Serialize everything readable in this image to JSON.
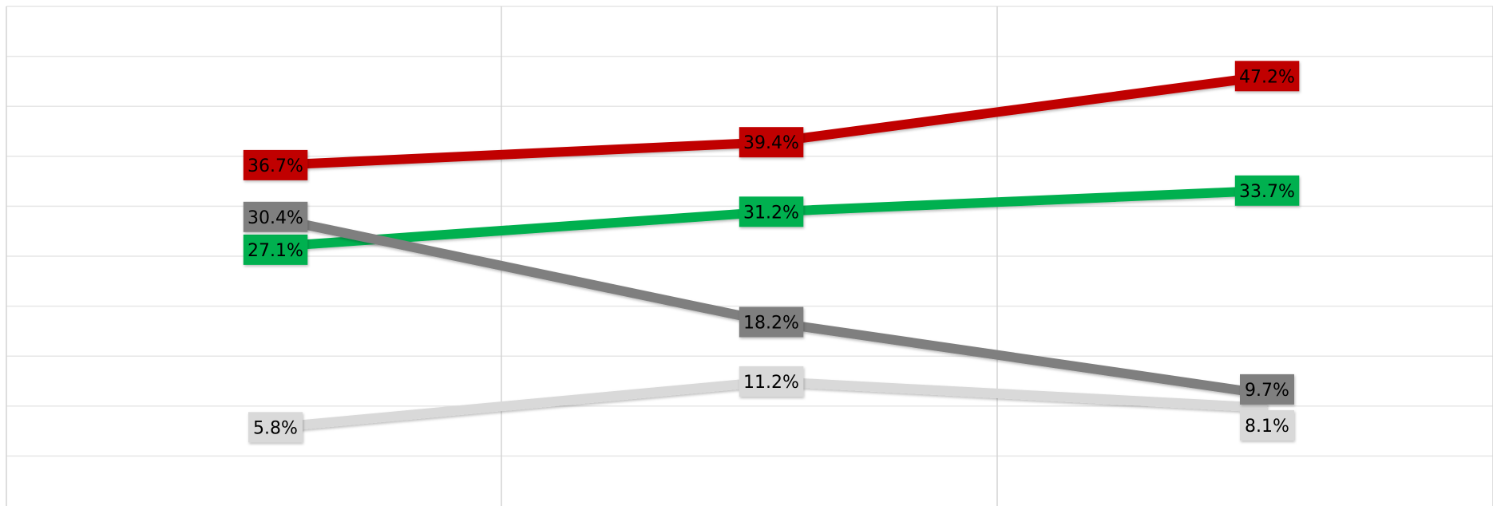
{
  "chart_data": {
    "type": "line",
    "x": [
      0,
      1,
      2
    ],
    "ylim": [
      0,
      50
    ],
    "grid": true,
    "series": [
      {
        "values": [
          36.7,
          39.4,
          47.2
        ],
        "labels": [
          "36.7%",
          "39.4%",
          "47.2%"
        ],
        "color": "#c00000",
        "text_color": "#000000"
      },
      {
        "values": [
          27.1,
          31.2,
          33.7
        ],
        "labels": [
          "27.1%",
          "31.2%",
          "33.7%"
        ],
        "color": "#00b050",
        "text_color": "#000000"
      },
      {
        "values": [
          30.4,
          18.2,
          9.7
        ],
        "labels": [
          "30.4%",
          "18.2%",
          "9.7%"
        ],
        "color": "#7f7f7f",
        "text_color": "#000000"
      },
      {
        "values": [
          5.8,
          11.2,
          8.1
        ],
        "labels": [
          "5.8%",
          "11.2%",
          "8.1%"
        ],
        "color": "#d9d9d9",
        "text_color": "#000000"
      }
    ]
  }
}
